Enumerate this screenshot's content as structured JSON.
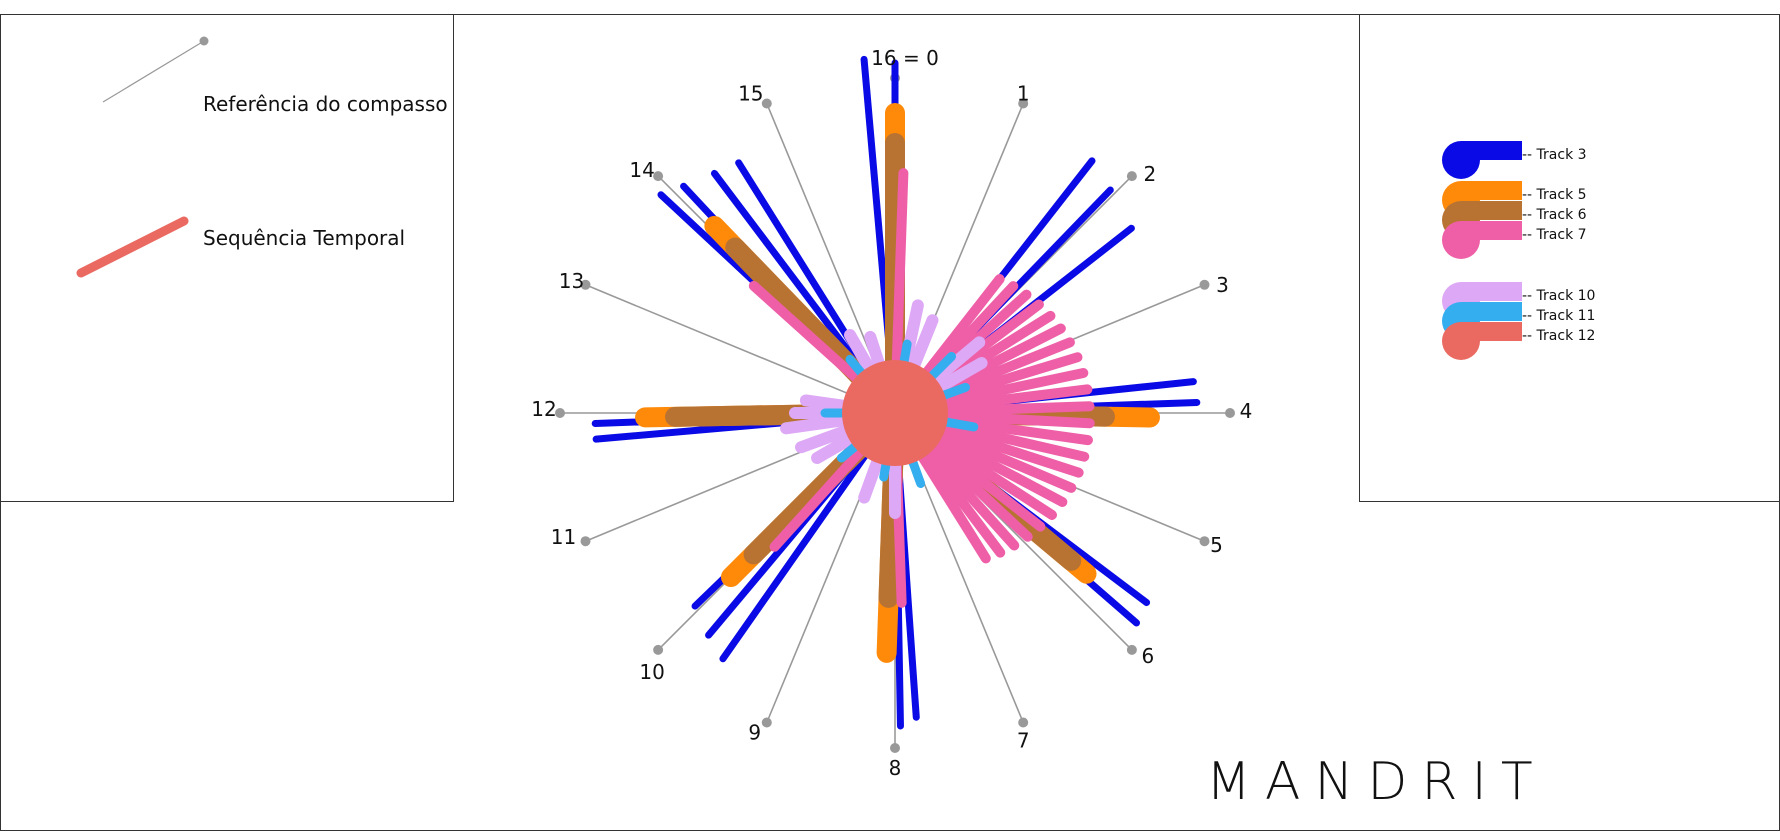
{
  "legend": {
    "compass_reference": "Referência do compasso",
    "temporal_sequence": "Sequência Temporal"
  },
  "colors": {
    "track3": "#0a0ae6",
    "track5": "#ff8a0a",
    "track6": "#b87333",
    "track7": "#ee5fa7",
    "track10": "#dda8f5",
    "track11": "#35aef0",
    "track12": "#ea6a62",
    "compass": "#999999"
  },
  "tracks": [
    {
      "id": "track3",
      "label": "-- Track 3"
    },
    {
      "id": "track5",
      "label": "-- Track 5"
    },
    {
      "id": "track6",
      "label": "-- Track 6"
    },
    {
      "id": "track7",
      "label": "-- Track 7"
    },
    {
      "id": "track10",
      "label": "-- Track 10"
    },
    {
      "id": "track11",
      "label": "-- Track 11"
    },
    {
      "id": "track12",
      "label": "-- Track 12"
    }
  ],
  "compass": {
    "labels": [
      "16 = 0",
      "1",
      "2",
      "3",
      "4",
      "5",
      "6",
      "7",
      "8",
      "9",
      "10",
      "11",
      "12",
      "13",
      "14",
      "15"
    ]
  },
  "brand": "MANDRIT"
}
